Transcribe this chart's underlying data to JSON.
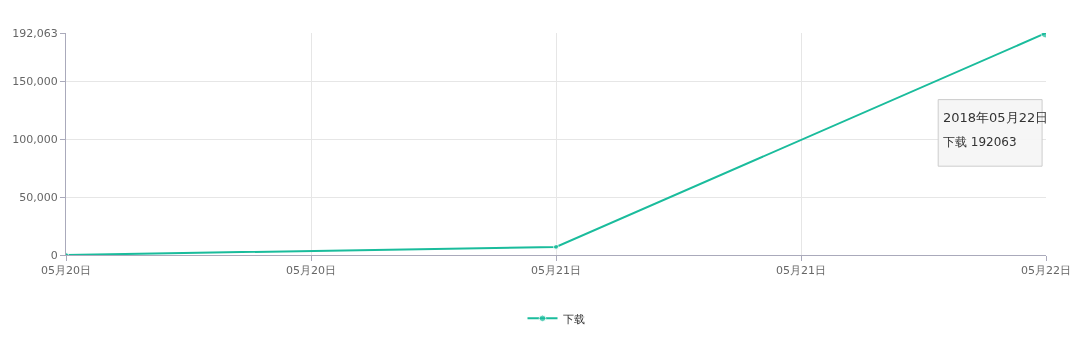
{
  "chart_data": {
    "type": "line",
    "x": [
      "2018-05-20",
      "2018-05-21",
      "2018-05-22"
    ],
    "series": [
      {
        "name": "下载",
        "color": "#1abc9c",
        "values": [
          0,
          7000,
          192063
        ]
      }
    ],
    "xlim": [
      "2018-05-20",
      "2018-05-22"
    ],
    "xticks": [
      {
        "value": "2018-05-20",
        "label": "05月20日"
      },
      {
        "value": "2018-05-20T12:00",
        "label": "05月20日"
      },
      {
        "value": "2018-05-21",
        "label": "05月21日"
      },
      {
        "value": "2018-05-21T12:00",
        "label": "05月21日"
      },
      {
        "value": "2018-05-22",
        "label": "05月22日"
      }
    ],
    "ylim": [
      0,
      192063
    ],
    "yticks": [
      0,
      {
        "value": 50000,
        "label": "50,000"
      },
      {
        "value": 100000,
        "label": "100,000"
      },
      {
        "value": 150000,
        "label": "150,000"
      },
      {
        "value": 192063,
        "label": "192,063"
      }
    ],
    "grid": true,
    "legend": "bottom",
    "marker": "circle",
    "line_style": "solid",
    "annotations": [
      "2018年05月22日",
      "下载 192063"
    ]
  }
}
